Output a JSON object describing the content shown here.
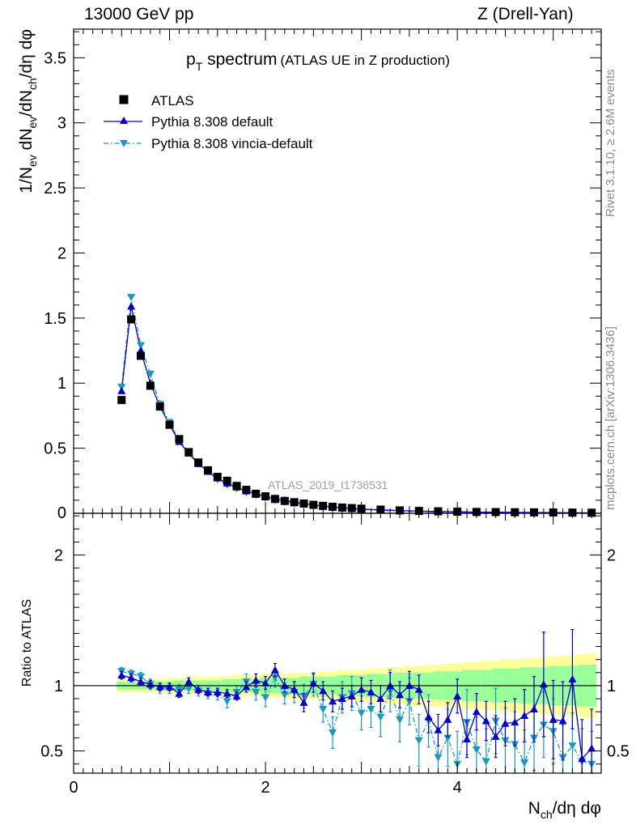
{
  "header": {
    "left": "13000 GeV pp",
    "right": "Z (Drell-Yan)"
  },
  "side_labels": {
    "rivet": "Rivet 3.1.10, ≥ 2.6M events",
    "mcplots": "mcplots.cern.ch [arXiv:1306.3436]"
  },
  "watermark": "ATLAS_2019_I1736531",
  "colors": {
    "atlas": "#000000",
    "default": "#0000cc",
    "vincia": "#1899bf",
    "band_inner": "#99ff99",
    "band_outer": "#ffff99"
  },
  "chart_data": [
    {
      "type": "scatter",
      "title": "p_T spectrum",
      "title_main": "p",
      "title_sub": "T",
      "title_after": " spectrum",
      "title_note": "(ATLAS UE in Z production)",
      "xlabel": "N_ch/dη dφ",
      "ylabel": "1/N_ev dN_ev/dN_ch/dη dφ",
      "ylabel_parts": [
        "1/N",
        "ev",
        " dN",
        "ev",
        "/dN",
        "ch",
        "/dη dφ"
      ],
      "xlim": [
        0,
        5.5
      ],
      "ylim": [
        0,
        3.72
      ],
      "yticks": [
        "0",
        "0.5",
        "1",
        "1.5",
        "2",
        "2.5",
        "3",
        "3.5"
      ],
      "legend_position": "top-left",
      "x": [
        0.5,
        0.6,
        0.7,
        0.8,
        0.9,
        1.0,
        1.1,
        1.2,
        1.3,
        1.4,
        1.5,
        1.6,
        1.7,
        1.8,
        1.9,
        2.0,
        2.1,
        2.2,
        2.3,
        2.4,
        2.5,
        2.6,
        2.7,
        2.8,
        2.9,
        3.0,
        3.2,
        3.4,
        3.6,
        3.8,
        4.0,
        4.2,
        4.4,
        4.6,
        4.8,
        5.0,
        5.2,
        5.4
      ],
      "series": [
        {
          "name": "ATLAS",
          "marker": "square",
          "values": [
            0.87,
            1.49,
            1.21,
            0.98,
            0.82,
            0.68,
            0.57,
            0.47,
            0.39,
            0.33,
            0.28,
            0.25,
            0.21,
            0.18,
            0.15,
            0.13,
            0.11,
            0.095,
            0.085,
            0.075,
            0.065,
            0.057,
            0.05,
            0.044,
            0.04,
            0.035,
            0.028,
            0.022,
            0.018,
            0.015,
            0.012,
            0.01,
            0.009,
            0.008,
            0.007,
            0.006,
            0.005,
            0.004
          ]
        },
        {
          "name": "Pythia 8.308 default",
          "marker": "triangle-up",
          "line": "solid",
          "values": [
            0.94,
            1.59,
            1.25,
            1.0,
            0.82,
            0.68,
            0.55,
            0.46,
            0.38,
            0.32,
            0.27,
            0.23,
            0.2,
            0.17,
            0.15,
            0.13,
            0.115,
            0.1,
            0.085,
            0.075,
            0.065,
            0.056,
            0.048,
            0.042,
            0.037,
            0.032,
            0.026,
            0.021,
            0.017,
            0.013,
            0.011,
            0.009,
            0.008,
            0.007,
            0.006,
            0.005,
            0.004,
            0.003
          ]
        },
        {
          "name": "Pythia 8.308 vincia-default",
          "marker": "triangle-down",
          "line": "dashdot",
          "values": [
            0.97,
            1.66,
            1.29,
            1.07,
            0.84,
            0.7,
            0.56,
            0.47,
            0.38,
            0.32,
            0.26,
            0.22,
            0.19,
            0.16,
            0.14,
            0.12,
            0.1,
            0.088,
            0.075,
            0.066,
            0.058,
            0.05,
            0.043,
            0.037,
            0.032,
            0.028,
            0.022,
            0.017,
            0.013,
            0.01,
            0.008,
            0.006,
            0.005,
            0.004,
            0.004,
            0.003,
            0.003,
            0.002
          ]
        }
      ]
    },
    {
      "type": "scatter",
      "ylabel": "Ratio to ATLAS",
      "xlabel": "N_ch/dη dφ",
      "xlim": [
        0,
        5.5
      ],
      "ylim": [
        0.33,
        2.32
      ],
      "xticks": [
        "0",
        "2",
        "4"
      ],
      "yticks": [
        "0.5",
        "1",
        "2"
      ],
      "x": [
        0.5,
        0.6,
        0.7,
        0.8,
        0.9,
        1.0,
        1.1,
        1.2,
        1.3,
        1.4,
        1.5,
        1.6,
        1.7,
        1.8,
        1.9,
        2.0,
        2.1,
        2.2,
        2.3,
        2.4,
        2.5,
        2.6,
        2.7,
        2.8,
        2.9,
        3.0,
        3.1,
        3.2,
        3.3,
        3.4,
        3.5,
        3.6,
        3.7,
        3.8,
        3.9,
        4.0,
        4.1,
        4.2,
        4.3,
        4.4,
        4.5,
        4.6,
        4.7,
        4.8,
        4.9,
        5.0,
        5.1,
        5.2,
        5.3,
        5.4
      ],
      "band_inner": [
        0.03,
        0.03,
        0.03,
        0.03,
        0.03,
        0.03,
        0.04,
        0.04,
        0.04,
        0.04,
        0.04,
        0.05,
        0.05,
        0.05,
        0.05,
        0.06,
        0.06,
        0.06,
        0.06,
        0.07,
        0.07,
        0.07,
        0.07,
        0.08,
        0.08,
        0.08,
        0.09,
        0.09,
        0.09,
        0.1,
        0.1,
        0.1,
        0.1,
        0.11,
        0.11,
        0.11,
        0.12,
        0.12,
        0.12,
        0.13,
        0.13,
        0.13,
        0.14,
        0.14,
        0.14,
        0.15,
        0.15,
        0.15,
        0.16,
        0.16
      ],
      "band_outer": [
        0.05,
        0.05,
        0.05,
        0.05,
        0.05,
        0.06,
        0.06,
        0.06,
        0.07,
        0.07,
        0.07,
        0.07,
        0.08,
        0.08,
        0.08,
        0.09,
        0.09,
        0.09,
        0.1,
        0.1,
        0.1,
        0.11,
        0.11,
        0.12,
        0.12,
        0.12,
        0.13,
        0.13,
        0.14,
        0.14,
        0.15,
        0.15,
        0.16,
        0.16,
        0.17,
        0.17,
        0.18,
        0.18,
        0.19,
        0.19,
        0.2,
        0.2,
        0.21,
        0.21,
        0.22,
        0.22,
        0.23,
        0.23,
        0.24,
        0.25
      ],
      "series": [
        {
          "name": "Pythia 8.308 default",
          "values": [
            1.08,
            1.06,
            1.03,
            1.01,
            0.99,
            0.99,
            0.94,
            1.03,
            0.97,
            0.95,
            0.95,
            0.94,
            0.92,
            0.99,
            1.04,
            1.02,
            1.12,
            1.0,
            0.97,
            0.87,
            1.02,
            0.96,
            0.88,
            0.9,
            0.92,
            0.97,
            0.95,
            0.9,
            1.0,
            0.93,
            1.0,
            0.97,
            0.76,
            0.66,
            0.74,
            0.92,
            0.59,
            0.8,
            0.73,
            0.61,
            0.71,
            0.72,
            0.77,
            0.82,
            1.01,
            0.74,
            0.73,
            1.05,
            0.44,
            0.52
          ],
          "errors": [
            0.03,
            0.03,
            0.03,
            0.03,
            0.03,
            0.03,
            0.03,
            0.03,
            0.03,
            0.03,
            0.03,
            0.03,
            0.03,
            0.04,
            0.05,
            0.05,
            0.05,
            0.05,
            0.06,
            0.07,
            0.07,
            0.07,
            0.08,
            0.08,
            0.08,
            0.09,
            0.09,
            0.1,
            0.1,
            0.1,
            0.11,
            0.11,
            0.12,
            0.12,
            0.13,
            0.13,
            0.14,
            0.14,
            0.15,
            0.16,
            0.17,
            0.18,
            0.2,
            0.25,
            0.4,
            0.3,
            0.3,
            0.38,
            0.3,
            0.3
          ]
        },
        {
          "name": "Pythia 8.308 vincia-default",
          "values": [
            1.11,
            1.09,
            1.07,
            1.01,
            0.98,
            0.98,
            0.97,
            0.98,
            0.96,
            0.94,
            0.93,
            0.88,
            0.95,
            1.03,
            0.95,
            0.91,
            1.06,
            0.93,
            0.95,
            0.92,
            1.01,
            0.82,
            0.64,
            0.91,
            0.94,
            0.79,
            0.82,
            0.76,
            0.96,
            0.74,
            0.88,
            0.58,
            0.73,
            0.45,
            0.6,
            0.4,
            0.72,
            0.51,
            0.42,
            0.73,
            0.58,
            0.55,
            0.41,
            0.6,
            0.7,
            0.65,
            0.45,
            0.54,
            0.42,
            0.4
          ],
          "errors": [
            0.03,
            0.03,
            0.03,
            0.04,
            0.04,
            0.04,
            0.04,
            0.04,
            0.04,
            0.04,
            0.04,
            0.05,
            0.05,
            0.06,
            0.06,
            0.07,
            0.07,
            0.07,
            0.08,
            0.09,
            0.09,
            0.1,
            0.12,
            0.12,
            0.13,
            0.13,
            0.14,
            0.15,
            0.16,
            0.17,
            0.18,
            0.2,
            0.2,
            0.22,
            0.22,
            0.25,
            0.25,
            0.25,
            0.25,
            0.25,
            0.25,
            0.25,
            0.25,
            0.25,
            0.25,
            0.25,
            0.25,
            0.25,
            0.25,
            0.25
          ]
        }
      ]
    }
  ]
}
